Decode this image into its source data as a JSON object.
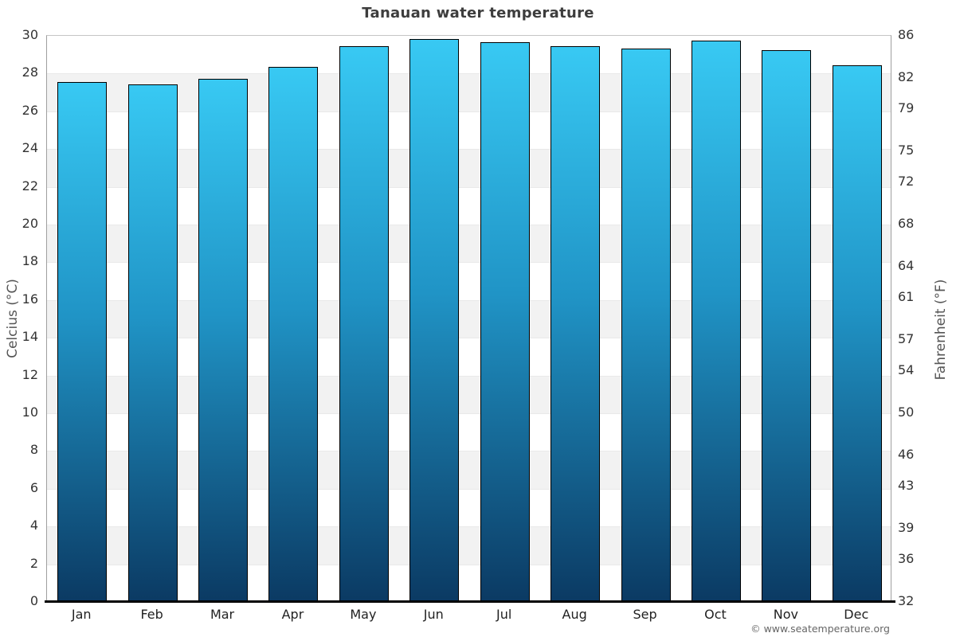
{
  "title": "Tanauan water temperature",
  "footer": {
    "credit": "© www.seatemperature.org"
  },
  "chart_data": {
    "type": "bar",
    "title": "Tanauan water temperature",
    "categories": [
      "Jan",
      "Feb",
      "Mar",
      "Apr",
      "May",
      "Jun",
      "Jul",
      "Aug",
      "Sep",
      "Oct",
      "Nov",
      "Dec"
    ],
    "values": [
      27.5,
      27.4,
      27.7,
      28.3,
      29.4,
      29.8,
      29.6,
      29.4,
      29.3,
      29.7,
      29.2,
      28.4
    ],
    "value_unit": "°C",
    "ylabel_left": "Celcius (°C)",
    "ylabel_right": "Fahrenheit (°F)",
    "ylim": [
      0,
      30
    ],
    "yticks_celsius": [
      30,
      28,
      26,
      24,
      22,
      20,
      18,
      16,
      14,
      12,
      10,
      8,
      6,
      4,
      2,
      0
    ],
    "yticks_fahrenheit": [
      86,
      82,
      79,
      75,
      72,
      68,
      64,
      61,
      57,
      54,
      50,
      46,
      43,
      39,
      36,
      32
    ],
    "legend": "none",
    "grid": "alternating horizontal bands every 2°C, shaded from 28°C downward in even pairs",
    "colors": {
      "bar_gradient_top": "#38c9f3",
      "bar_gradient_bottom": "#0b3a63",
      "bar_border": "#000000",
      "band_light": "#ffffff",
      "band_shaded": "#f2f2f2",
      "band_edge": "#e9e9e9",
      "axis_line": "#9f9f9f",
      "top_gridline": "#c5c5c5",
      "baseline": "#000000",
      "title_text": "#3d3d3d",
      "tick_text": "#333333",
      "axis_title_text": "#555555",
      "credit_text": "#666666"
    }
  }
}
